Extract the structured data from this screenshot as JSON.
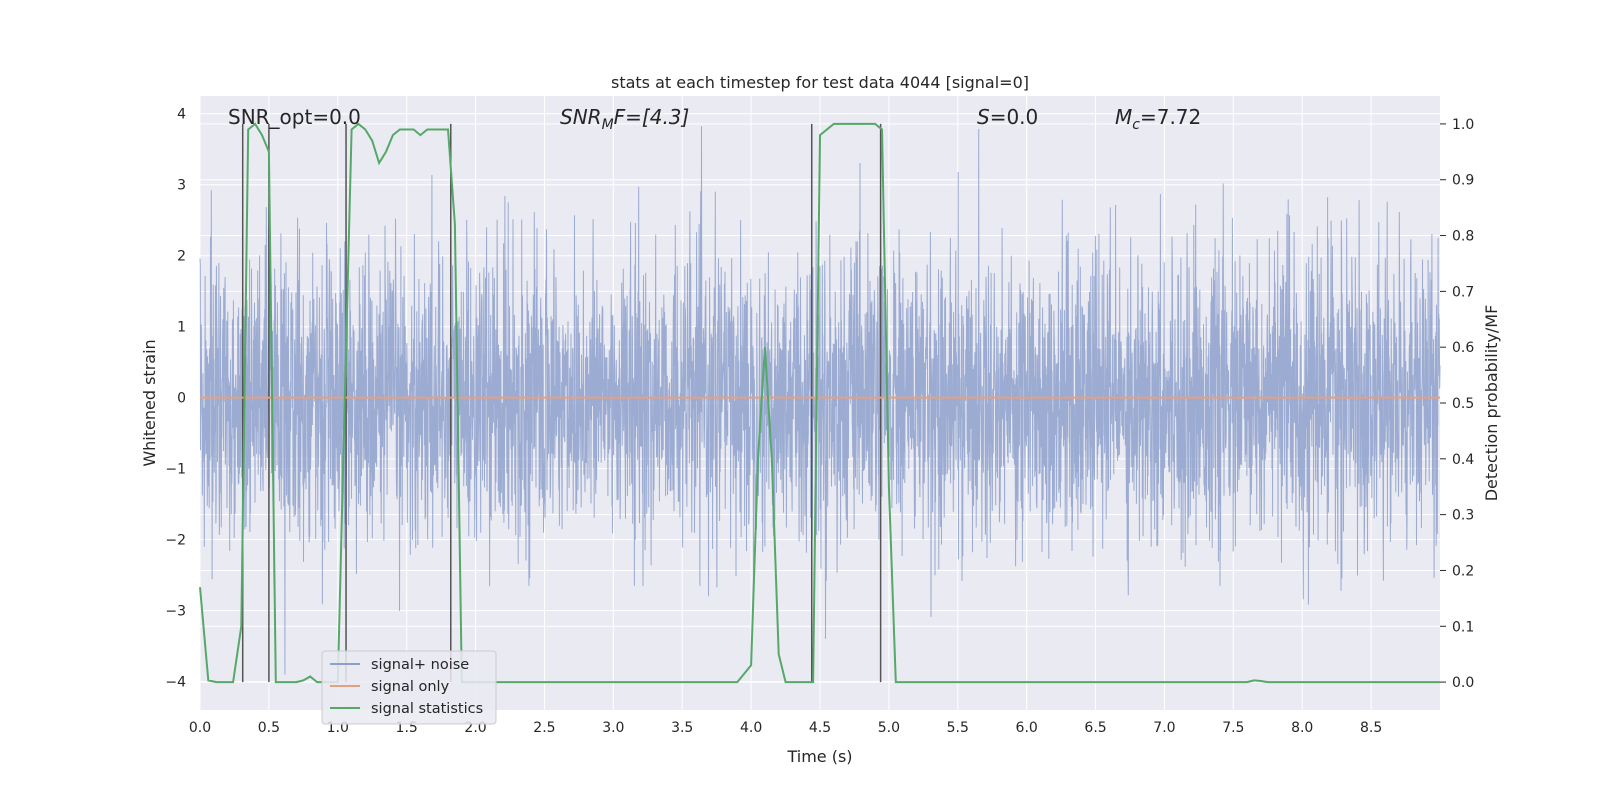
{
  "chart_data": {
    "type": "line",
    "title": "stats at each timestep for test data 4044 [signal=0]",
    "xlabel": "Time (s)",
    "ylabel": "Whitened strain",
    "y2label": "Detection probability/MF",
    "xlim": [
      0,
      9.0
    ],
    "ylim": [
      -4.4,
      4.25
    ],
    "y2lim": [
      -0.05,
      1.05
    ],
    "xticks": [
      "0.0",
      "0.5",
      "1.0",
      "1.5",
      "2.0",
      "2.5",
      "3.0",
      "3.5",
      "4.0",
      "4.5",
      "5.0",
      "5.5",
      "6.0",
      "6.5",
      "7.0",
      "7.5",
      "8.0",
      "8.5"
    ],
    "yticks": [
      "4",
      "3",
      "2",
      "1",
      "0",
      "−1",
      "−2",
      "−3",
      "−4"
    ],
    "y2ticks": [
      "1.0",
      "0.9",
      "0.8",
      "0.7",
      "0.6",
      "0.5",
      "0.4",
      "0.3",
      "0.2",
      "0.1",
      "0.0"
    ],
    "grid": true,
    "legend_placement": "lower-left",
    "annotations": {
      "snr_opt": "SNR_opt=0.0",
      "snr_mf_base": "SNR",
      "snr_mf_sub": "M",
      "snr_mf_tail": "F=[4.3]",
      "s_label": "S",
      "s_value": "=0.0",
      "mc_base": "M",
      "mc_sub": "c",
      "mc_value": "=7.72"
    },
    "series": [
      {
        "name": "signal+ noise",
        "color": "#8da0cb",
        "kind": "noise",
        "amplitude_std": 1.0,
        "sample_rate_hz": 2048
      },
      {
        "name": "signal only",
        "color": "#e5a07f",
        "kind": "flat",
        "value": 0.0
      },
      {
        "name": "signal statistics",
        "color": "#55a868",
        "axis": "right",
        "x": [
          0.0,
          0.06,
          0.12,
          0.18,
          0.24,
          0.3,
          0.35,
          0.4,
          0.45,
          0.5,
          0.55,
          0.6,
          0.65,
          0.7,
          0.75,
          0.8,
          0.85,
          0.9,
          0.95,
          1.0,
          1.05,
          1.1,
          1.15,
          1.2,
          1.25,
          1.3,
          1.35,
          1.4,
          1.45,
          1.5,
          1.55,
          1.6,
          1.65,
          1.7,
          1.75,
          1.8,
          1.85,
          1.9,
          1.95,
          2.0,
          2.5,
          3.0,
          3.5,
          3.9,
          4.0,
          4.05,
          4.1,
          4.15,
          4.2,
          4.25,
          4.3,
          4.35,
          4.4,
          4.45,
          4.5,
          4.55,
          4.6,
          4.65,
          4.7,
          4.75,
          4.8,
          4.85,
          4.9,
          4.95,
          5.0,
          5.05,
          5.1,
          5.5,
          6.0,
          6.5,
          7.0,
          7.5,
          7.6,
          7.65,
          7.7,
          7.75,
          7.8,
          8.0,
          8.5,
          8.7,
          9.0
        ],
        "values": [
          0.17,
          0.003,
          0.0,
          0.0,
          0.0,
          0.1,
          0.99,
          1.0,
          0.98,
          0.95,
          0.0,
          0.0,
          0.0,
          0.0,
          0.003,
          0.01,
          0.0,
          0.0,
          0.0,
          0.0,
          0.5,
          0.99,
          1.0,
          0.99,
          0.97,
          0.93,
          0.95,
          0.98,
          0.99,
          0.99,
          0.99,
          0.98,
          0.99,
          0.99,
          0.99,
          0.99,
          0.82,
          0.0,
          0.0,
          0.0,
          0.0,
          0.0,
          0.0,
          0.0,
          0.03,
          0.4,
          0.6,
          0.4,
          0.05,
          0.0,
          0.0,
          0.0,
          0.0,
          0.0,
          0.98,
          0.99,
          1.0,
          1.0,
          1.0,
          1.0,
          1.0,
          1.0,
          1.0,
          0.99,
          0.35,
          0.0,
          0.0,
          0.0,
          0.0,
          0.0,
          0.0,
          0.0,
          0.0,
          0.003,
          0.002,
          0.0,
          0.0,
          0.0,
          0.0,
          0.0,
          0.0
        ]
      }
    ],
    "vertical_markers_x": [
      0.31,
      0.5,
      1.82,
      4.44,
      4.94,
      1.06
    ]
  }
}
